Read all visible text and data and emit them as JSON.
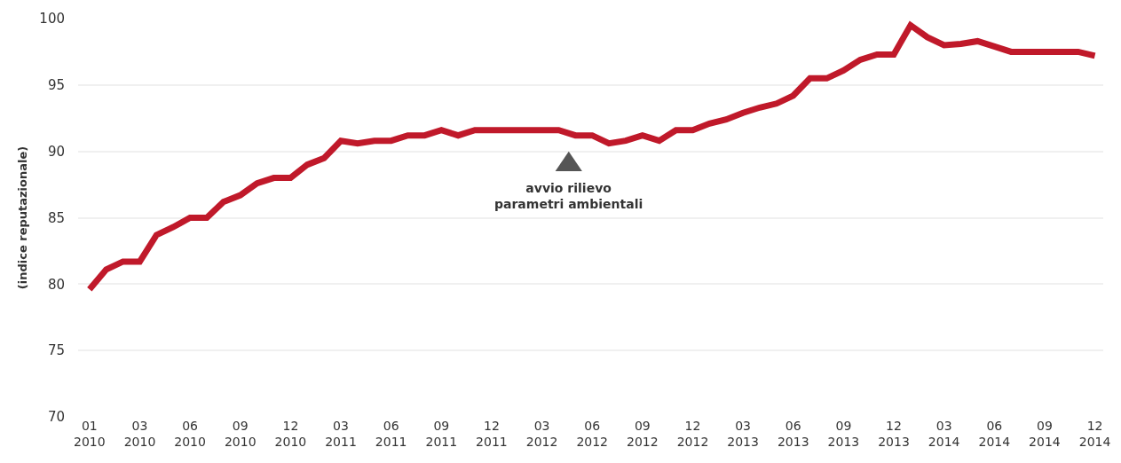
{
  "chart_data": {
    "type": "line",
    "ylabel": "(indice reputazionale)",
    "categories": [
      "01\n2010",
      null,
      null,
      "03\n2010",
      null,
      null,
      "06\n2010",
      null,
      null,
      "09\n2010",
      null,
      null,
      "12\n2010",
      null,
      null,
      "03\n2011",
      null,
      null,
      "06\n2011",
      null,
      null,
      "09\n2011",
      null,
      null,
      "12\n2011",
      null,
      null,
      "03\n2012",
      null,
      null,
      "06\n2012",
      null,
      null,
      "09\n2012",
      null,
      null,
      "12\n2012",
      null,
      null,
      "03\n2013",
      null,
      null,
      "06\n2013",
      null,
      null,
      "09\n2013",
      null,
      null,
      "12\n2013",
      null,
      null,
      "03\n2014",
      null,
      null,
      "06\n2014",
      null,
      null,
      "09\n2014",
      null,
      null,
      "12\n2014"
    ],
    "series": [
      {
        "color": "#c0192a",
        "values": [
          79.6,
          81.1,
          81.7,
          81.7,
          83.7,
          84.3,
          85.0,
          85.0,
          86.2,
          86.7,
          87.6,
          88.0,
          88.0,
          89.0,
          89.5,
          90.8,
          90.6,
          90.8,
          90.8,
          91.2,
          91.2,
          91.6,
          91.2,
          91.6,
          91.6,
          91.6,
          91.6,
          91.6,
          91.6,
          91.2,
          91.2,
          90.6,
          90.8,
          91.2,
          90.8,
          91.6,
          91.6,
          92.1,
          92.4,
          92.9,
          93.3,
          93.6,
          94.2,
          95.5,
          95.5,
          96.1,
          96.9,
          97.3,
          97.3,
          99.5,
          98.6,
          98.0,
          98.1,
          98.3,
          97.9,
          97.5,
          97.5,
          97.5,
          97.5,
          97.5,
          97.2
        ]
      }
    ],
    "ylim": [
      70,
      100
    ],
    "yticks": [
      70,
      75,
      80,
      85,
      90,
      95,
      100
    ],
    "grid": "y",
    "marker": "none",
    "line_style": "solid",
    "annotations": [
      "avvio rilievo\nparametri ambientali"
    ]
  }
}
